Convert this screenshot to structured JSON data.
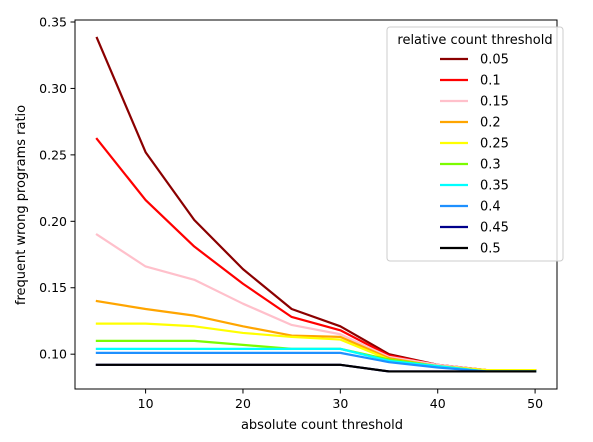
{
  "chart_data": {
    "type": "line",
    "title": "",
    "xlabel": "absolute count threshold",
    "ylabel": "frequent wrong programs ratio",
    "x": [
      5,
      10,
      15,
      20,
      25,
      30,
      35,
      40,
      45,
      50
    ],
    "xlim": [
      2.75,
      52.25
    ],
    "ylim": [
      0.0738,
      0.3515
    ],
    "xticks": [
      "10",
      "20",
      "30",
      "40",
      "50"
    ],
    "yticks": [
      "0.10",
      "0.15",
      "0.20",
      "0.25",
      "0.30",
      "0.35"
    ],
    "grid": false,
    "legend": {
      "title": "relative count threshold",
      "placement": "top-right"
    },
    "series": [
      {
        "name": "0.05",
        "color": "#8b0000",
        "values": [
          0.338,
          0.252,
          0.201,
          0.164,
          0.134,
          0.121,
          0.1,
          0.092,
          0.088,
          0.088
        ]
      },
      {
        "name": "0.1",
        "color": "#ff0000",
        "values": [
          0.262,
          0.216,
          0.181,
          0.153,
          0.128,
          0.118,
          0.099,
          0.092,
          0.088,
          0.088
        ]
      },
      {
        "name": "0.15",
        "color": "#ffc0cb",
        "values": [
          0.19,
          0.166,
          0.156,
          0.138,
          0.122,
          0.115,
          0.098,
          0.092,
          0.088,
          0.088
        ]
      },
      {
        "name": "0.2",
        "color": "#ffa500",
        "values": [
          0.14,
          0.134,
          0.129,
          0.121,
          0.114,
          0.113,
          0.097,
          0.091,
          0.088,
          0.088
        ]
      },
      {
        "name": "0.25",
        "color": "#ffff00",
        "values": [
          0.123,
          0.123,
          0.121,
          0.116,
          0.113,
          0.111,
          0.096,
          0.091,
          0.088,
          0.088
        ]
      },
      {
        "name": "0.3",
        "color": "#7cfc00",
        "values": [
          0.11,
          0.11,
          0.11,
          0.107,
          0.104,
          0.104,
          0.096,
          0.091,
          0.087,
          0.087
        ]
      },
      {
        "name": "0.35",
        "color": "#00ffff",
        "values": [
          0.104,
          0.104,
          0.104,
          0.104,
          0.104,
          0.104,
          0.095,
          0.091,
          0.087,
          0.087
        ]
      },
      {
        "name": "0.4",
        "color": "#1e90ff",
        "values": [
          0.101,
          0.101,
          0.101,
          0.101,
          0.101,
          0.101,
          0.094,
          0.09,
          0.087,
          0.087
        ]
      },
      {
        "name": "0.45",
        "color": "#00008b",
        "values": [
          0.092,
          0.092,
          0.092,
          0.092,
          0.092,
          0.092,
          0.087,
          0.087,
          0.087,
          0.087
        ]
      },
      {
        "name": "0.5",
        "color": "#000000",
        "values": [
          0.092,
          0.092,
          0.092,
          0.092,
          0.092,
          0.092,
          0.087,
          0.087,
          0.087,
          0.087
        ]
      }
    ]
  }
}
